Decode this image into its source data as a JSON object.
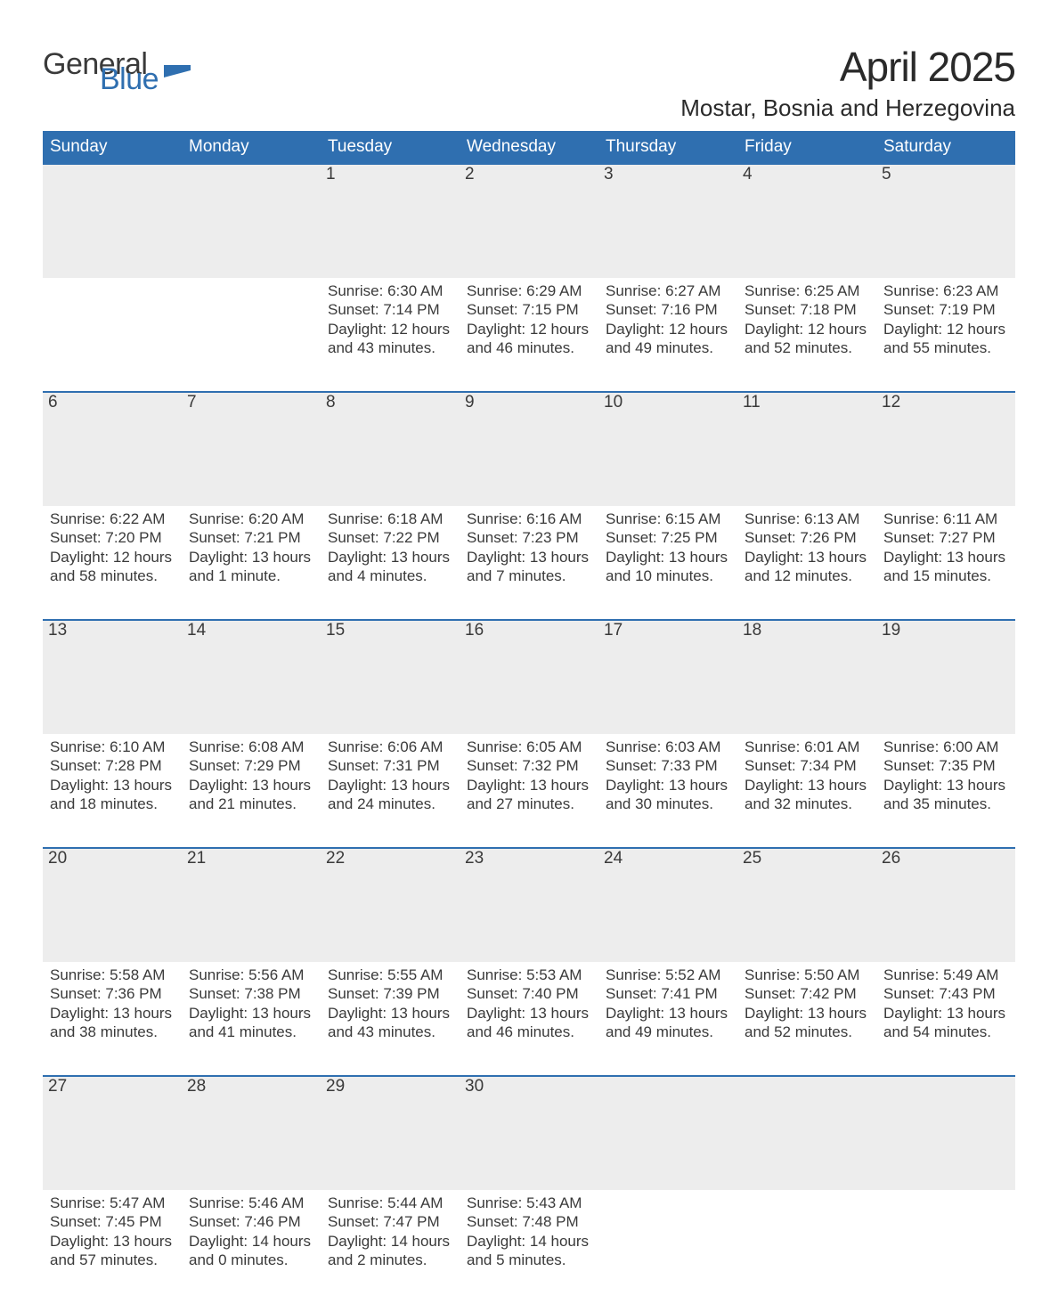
{
  "logo": {
    "word1": "General",
    "word2": "Blue",
    "flag_color": "#2f6fb0"
  },
  "title": "April 2025",
  "location": "Mostar, Bosnia and Herzegovina",
  "colors": {
    "header_bg": "#2f6fb0",
    "header_text": "#ffffff",
    "daynum_bg": "#ededed",
    "rule": "#2f6fb0",
    "body_text": "#3a3a3a",
    "page_bg": "#ffffff"
  },
  "fonts": {
    "base_size_pt": 13,
    "title_size_pt": 35,
    "location_size_pt": 20,
    "header_size_pt": 14,
    "daynum_size_pt": 14
  },
  "day_headers": [
    "Sunday",
    "Monday",
    "Tuesday",
    "Wednesday",
    "Thursday",
    "Friday",
    "Saturday"
  ],
  "weeks": [
    [
      null,
      null,
      {
        "n": "1",
        "sr": "6:30 AM",
        "ss": "7:14 PM",
        "dl": "12 hours and 43 minutes."
      },
      {
        "n": "2",
        "sr": "6:29 AM",
        "ss": "7:15 PM",
        "dl": "12 hours and 46 minutes."
      },
      {
        "n": "3",
        "sr": "6:27 AM",
        "ss": "7:16 PM",
        "dl": "12 hours and 49 minutes."
      },
      {
        "n": "4",
        "sr": "6:25 AM",
        "ss": "7:18 PM",
        "dl": "12 hours and 52 minutes."
      },
      {
        "n": "5",
        "sr": "6:23 AM",
        "ss": "7:19 PM",
        "dl": "12 hours and 55 minutes."
      }
    ],
    [
      {
        "n": "6",
        "sr": "6:22 AM",
        "ss": "7:20 PM",
        "dl": "12 hours and 58 minutes."
      },
      {
        "n": "7",
        "sr": "6:20 AM",
        "ss": "7:21 PM",
        "dl": "13 hours and 1 minute."
      },
      {
        "n": "8",
        "sr": "6:18 AM",
        "ss": "7:22 PM",
        "dl": "13 hours and 4 minutes."
      },
      {
        "n": "9",
        "sr": "6:16 AM",
        "ss": "7:23 PM",
        "dl": "13 hours and 7 minutes."
      },
      {
        "n": "10",
        "sr": "6:15 AM",
        "ss": "7:25 PM",
        "dl": "13 hours and 10 minutes."
      },
      {
        "n": "11",
        "sr": "6:13 AM",
        "ss": "7:26 PM",
        "dl": "13 hours and 12 minutes."
      },
      {
        "n": "12",
        "sr": "6:11 AM",
        "ss": "7:27 PM",
        "dl": "13 hours and 15 minutes."
      }
    ],
    [
      {
        "n": "13",
        "sr": "6:10 AM",
        "ss": "7:28 PM",
        "dl": "13 hours and 18 minutes."
      },
      {
        "n": "14",
        "sr": "6:08 AM",
        "ss": "7:29 PM",
        "dl": "13 hours and 21 minutes."
      },
      {
        "n": "15",
        "sr": "6:06 AM",
        "ss": "7:31 PM",
        "dl": "13 hours and 24 minutes."
      },
      {
        "n": "16",
        "sr": "6:05 AM",
        "ss": "7:32 PM",
        "dl": "13 hours and 27 minutes."
      },
      {
        "n": "17",
        "sr": "6:03 AM",
        "ss": "7:33 PM",
        "dl": "13 hours and 30 minutes."
      },
      {
        "n": "18",
        "sr": "6:01 AM",
        "ss": "7:34 PM",
        "dl": "13 hours and 32 minutes."
      },
      {
        "n": "19",
        "sr": "6:00 AM",
        "ss": "7:35 PM",
        "dl": "13 hours and 35 minutes."
      }
    ],
    [
      {
        "n": "20",
        "sr": "5:58 AM",
        "ss": "7:36 PM",
        "dl": "13 hours and 38 minutes."
      },
      {
        "n": "21",
        "sr": "5:56 AM",
        "ss": "7:38 PM",
        "dl": "13 hours and 41 minutes."
      },
      {
        "n": "22",
        "sr": "5:55 AM",
        "ss": "7:39 PM",
        "dl": "13 hours and 43 minutes."
      },
      {
        "n": "23",
        "sr": "5:53 AM",
        "ss": "7:40 PM",
        "dl": "13 hours and 46 minutes."
      },
      {
        "n": "24",
        "sr": "5:52 AM",
        "ss": "7:41 PM",
        "dl": "13 hours and 49 minutes."
      },
      {
        "n": "25",
        "sr": "5:50 AM",
        "ss": "7:42 PM",
        "dl": "13 hours and 52 minutes."
      },
      {
        "n": "26",
        "sr": "5:49 AM",
        "ss": "7:43 PM",
        "dl": "13 hours and 54 minutes."
      }
    ],
    [
      {
        "n": "27",
        "sr": "5:47 AM",
        "ss": "7:45 PM",
        "dl": "13 hours and 57 minutes."
      },
      {
        "n": "28",
        "sr": "5:46 AM",
        "ss": "7:46 PM",
        "dl": "14 hours and 0 minutes."
      },
      {
        "n": "29",
        "sr": "5:44 AM",
        "ss": "7:47 PM",
        "dl": "14 hours and 2 minutes."
      },
      {
        "n": "30",
        "sr": "5:43 AM",
        "ss": "7:48 PM",
        "dl": "14 hours and 5 minutes."
      },
      null,
      null,
      null
    ]
  ],
  "labels": {
    "sunrise": "Sunrise: ",
    "sunset": "Sunset: ",
    "daylight": "Daylight: "
  }
}
